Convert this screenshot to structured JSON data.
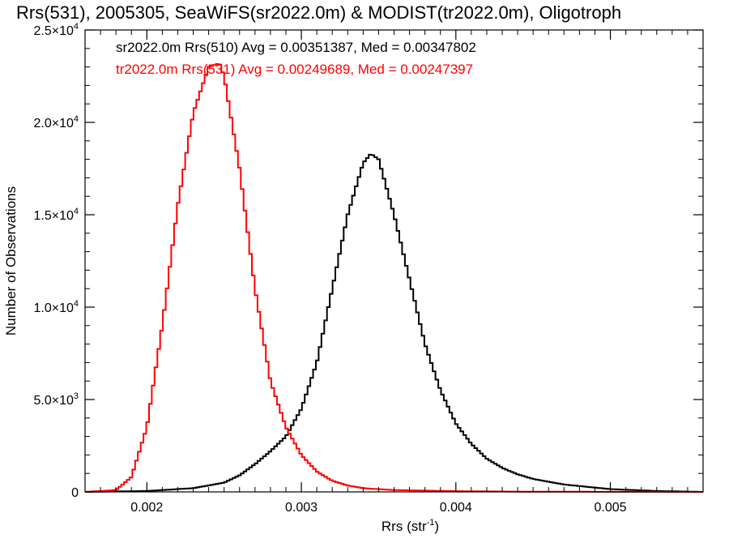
{
  "chart_data": {
    "type": "line",
    "title": "Rrs(531), 2005305, SeaWiFS(sr2022.0m) & MODIST(tr2022.0m), Oligotroph",
    "xlabel": "Rrs (str",
    "xlabel_sup": "-1",
    "xlabel_suffix": ")",
    "ylabel": "Number of Observations",
    "xlim": [
      0.0016,
      0.0056
    ],
    "ylim": [
      0,
      25000
    ],
    "grid": false,
    "step": true,
    "x_ticks": [
      {
        "value": 0.002,
        "label": "0.002"
      },
      {
        "value": 0.003,
        "label": "0.003"
      },
      {
        "value": 0.004,
        "label": "0.004"
      },
      {
        "value": 0.005,
        "label": "0.005"
      }
    ],
    "y_ticks": [
      {
        "value": 0,
        "mant": "0",
        "exp": ""
      },
      {
        "value": 5000,
        "mant": "5.0×10",
        "exp": "3"
      },
      {
        "value": 10000,
        "mant": "1.0×10",
        "exp": "4"
      },
      {
        "value": 15000,
        "mant": "1.5×10",
        "exp": "4"
      },
      {
        "value": 20000,
        "mant": "2.0×10",
        "exp": "4"
      },
      {
        "value": 25000,
        "mant": "2.5×10",
        "exp": "4"
      }
    ],
    "annotations": [
      {
        "text": "sr2022.0m Rrs(510) Avg = 0.00351387, Med = 0.00347802",
        "color": "#000000"
      },
      {
        "text": "tr2022.0m Rrs(531) Avg = 0.00249689, Med = 0.00247397",
        "color": "#ff0000"
      }
    ],
    "series": [
      {
        "color": "#000000",
        "x": [
          0.0016,
          0.002,
          0.0023,
          0.0025,
          0.0026,
          0.0027,
          0.0028,
          0.0029,
          0.003,
          0.0031,
          0.0032,
          0.0033,
          0.0034,
          0.00345,
          0.0035,
          0.0036,
          0.0037,
          0.0038,
          0.0039,
          0.004,
          0.0041,
          0.0042,
          0.0043,
          0.0044,
          0.0045,
          0.0047,
          0.005,
          0.0053,
          0.0056
        ],
        "y": [
          0,
          50,
          200,
          500,
          900,
          1500,
          2200,
          3000,
          4500,
          7000,
          11000,
          15000,
          17800,
          18300,
          18000,
          15000,
          11500,
          8000,
          5500,
          3700,
          2600,
          1800,
          1300,
          950,
          700,
          400,
          150,
          50,
          0
        ]
      },
      {
        "color": "#ff0000",
        "x": [
          0.0016,
          0.0018,
          0.0019,
          0.002,
          0.0021,
          0.0022,
          0.0023,
          0.0024,
          0.00247,
          0.0025,
          0.0026,
          0.0027,
          0.0028,
          0.0029,
          0.003,
          0.0031,
          0.0032,
          0.0033,
          0.0034,
          0.0036,
          0.004,
          0.0045,
          0.0056
        ],
        "y": [
          0,
          100,
          800,
          3500,
          9000,
          15500,
          20500,
          23000,
          23200,
          22500,
          17500,
          11000,
          6000,
          3500,
          2000,
          1100,
          600,
          350,
          200,
          100,
          40,
          10,
          0
        ]
      }
    ]
  }
}
